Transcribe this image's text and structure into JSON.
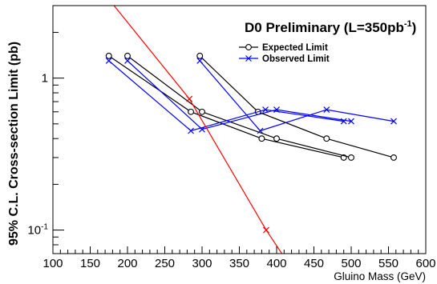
{
  "chart_data": {
    "type": "line",
    "title": "D0 Preliminary (L=350pb",
    "title_sup": "-1",
    "title_close": ")",
    "xlabel": "Gluino Mass (GeV)",
    "ylabel": "95% C.L. Cross-section Limit (pb)",
    "xlim": [
      100,
      600
    ],
    "ylim": [
      0.07,
      3.0
    ],
    "y_scale": "log",
    "grid": false,
    "legend_position": "top-right",
    "x_ticks": [
      "100",
      "150",
      "200",
      "250",
      "300",
      "350",
      "400",
      "450",
      "500",
      "550",
      "600"
    ],
    "x_tick_values": [
      100,
      150,
      200,
      250,
      300,
      350,
      400,
      450,
      500,
      550,
      600
    ],
    "y_ticks": [
      {
        "value": 1,
        "base": "1",
        "exp": ""
      },
      {
        "value": 0.1,
        "base": "10",
        "exp": "-1"
      }
    ],
    "legend": [
      {
        "label": "Expected Limit",
        "color": "#000000",
        "marker": "circle"
      },
      {
        "label": "Observed Limit",
        "color": "#0000ff",
        "marker": "x"
      }
    ],
    "series": [
      {
        "group": "expected",
        "color": "#000000",
        "marker": "circle",
        "x": [
          175,
          285,
          380,
          490
        ],
        "y": [
          1.4,
          0.6,
          0.4,
          0.3
        ]
      },
      {
        "group": "expected",
        "color": "#000000",
        "marker": "circle",
        "x": [
          200,
          300,
          400,
          500
        ],
        "y": [
          1.4,
          0.6,
          0.4,
          0.3
        ]
      },
      {
        "group": "expected",
        "color": "#000000",
        "marker": "circle",
        "x": [
          297,
          375,
          467,
          557
        ],
        "y": [
          1.4,
          0.6,
          0.4,
          0.3
        ]
      },
      {
        "group": "observed",
        "color": "#0000ff",
        "marker": "x",
        "x": [
          175,
          285,
          385,
          490
        ],
        "y": [
          1.3,
          0.45,
          0.62,
          0.52
        ]
      },
      {
        "group": "observed",
        "color": "#0000ff",
        "marker": "x",
        "x": [
          200,
          300,
          400,
          500
        ],
        "y": [
          1.3,
          0.46,
          0.62,
          0.52
        ]
      },
      {
        "group": "observed",
        "color": "#0000ff",
        "marker": "x",
        "x": [
          297,
          378,
          467,
          557
        ],
        "y": [
          1.3,
          0.45,
          0.62,
          0.52
        ]
      },
      {
        "group": "theory",
        "color": "#ff0000",
        "marker": "x",
        "x": [
          173,
          283,
          386,
          407
        ],
        "y": [
          3.4,
          0.73,
          0.1,
          0.07
        ],
        "marked_x": [
          283,
          386
        ]
      }
    ]
  }
}
